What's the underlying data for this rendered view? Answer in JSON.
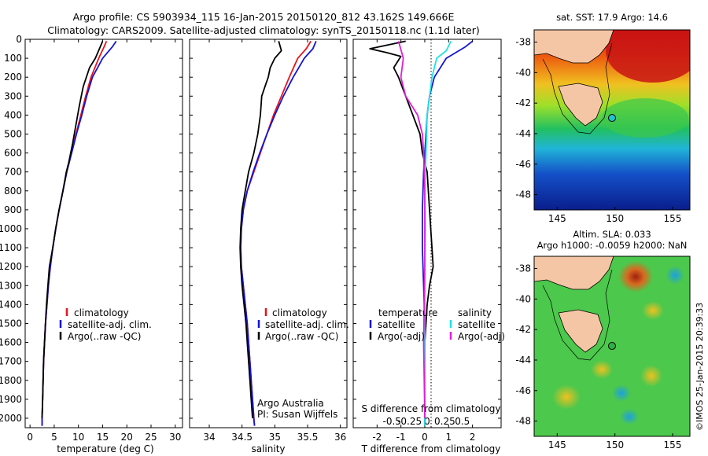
{
  "header": {
    "line1": "Argo profile: CS 5903934_115 16-Jan-2015 20150120_812 43.162S 149.666E",
    "line2": "Climatology: CARS2009. Satellite-adjusted climatology: synTS_20150118.nc (1.1d later)"
  },
  "side_label": "©IMOS 25-Jan-2015 20:39:33",
  "colors": {
    "climatology": "#e8141c",
    "satellite": "#1414d8",
    "argo": "#000000",
    "sal_satellite": "#1fe3e3",
    "sal_argo": "#e01fd8",
    "land": "#f5c6a5"
  },
  "chart_data": [
    {
      "id": "temperature",
      "type": "line",
      "xlabel": "temperature (deg C)",
      "ylim": [
        2050,
        0
      ],
      "xlim": [
        -1,
        31.5
      ],
      "xticks": [
        0,
        5,
        10,
        15,
        20,
        25,
        30
      ],
      "yticks": [
        0,
        100,
        200,
        300,
        400,
        500,
        600,
        700,
        800,
        900,
        1000,
        1100,
        1200,
        1300,
        1400,
        1500,
        1600,
        1700,
        1800,
        1900,
        2000
      ],
      "legend": [
        "climatology",
        "satellite-adj. clim.",
        "Argo(..raw -QC)"
      ],
      "series": [
        {
          "name": "climatology",
          "color": "#e8141c",
          "points": [
            [
              15.8,
              10
            ],
            [
              15.3,
              40
            ],
            [
              14.2,
              100
            ],
            [
              12.6,
              200
            ],
            [
              11.5,
              300
            ],
            [
              10.5,
              400
            ],
            [
              9.5,
              500
            ],
            [
              8.5,
              600
            ],
            [
              7.6,
              700
            ],
            [
              6.8,
              800
            ],
            [
              6.0,
              900
            ],
            [
              5.3,
              1000
            ],
            [
              4.7,
              1100
            ],
            [
              4.2,
              1200
            ],
            [
              3.8,
              1300
            ],
            [
              3.5,
              1400
            ],
            [
              3.2,
              1500
            ],
            [
              3.0,
              1600
            ],
            [
              2.8,
              1700
            ],
            [
              2.7,
              1800
            ],
            [
              2.6,
              1900
            ],
            [
              2.5,
              2000
            ],
            [
              2.5,
              2040
            ]
          ]
        },
        {
          "name": "satellite-adj. clim.",
          "color": "#1414d8",
          "points": [
            [
              17.8,
              10
            ],
            [
              17.0,
              40
            ],
            [
              15.0,
              100
            ],
            [
              12.9,
              200
            ],
            [
              11.7,
              300
            ],
            [
              10.7,
              400
            ],
            [
              9.6,
              500
            ],
            [
              8.6,
              600
            ],
            [
              7.6,
              700
            ],
            [
              6.8,
              800
            ],
            [
              6.0,
              900
            ],
            [
              5.3,
              1000
            ],
            [
              4.7,
              1100
            ],
            [
              4.2,
              1200
            ],
            [
              3.8,
              1300
            ],
            [
              3.5,
              1400
            ],
            [
              3.2,
              1500
            ],
            [
              3.0,
              1600
            ],
            [
              2.8,
              1700
            ],
            [
              2.7,
              1800
            ],
            [
              2.6,
              1900
            ],
            [
              2.5,
              2000
            ],
            [
              2.5,
              2040
            ]
          ]
        },
        {
          "name": "Argo(..raw -QC)",
          "color": "#000000",
          "points": [
            [
              15.0,
              10
            ],
            [
              14.5,
              40
            ],
            [
              13.5,
              100
            ],
            [
              12.3,
              150
            ],
            [
              11.0,
              250
            ],
            [
              10.2,
              350
            ],
            [
              9.5,
              450
            ],
            [
              8.8,
              550
            ],
            [
              8.0,
              650
            ],
            [
              7.5,
              700
            ],
            [
              6.8,
              800
            ],
            [
              6.0,
              900
            ],
            [
              5.3,
              1000
            ],
            [
              4.7,
              1100
            ],
            [
              4.0,
              1200
            ],
            [
              3.7,
              1300
            ],
            [
              3.4,
              1400
            ],
            [
              3.2,
              1500
            ],
            [
              3.0,
              1600
            ],
            [
              2.8,
              1700
            ],
            [
              2.7,
              1800
            ],
            [
              2.6,
              1900
            ],
            [
              2.5,
              2000
            ]
          ]
        }
      ]
    },
    {
      "id": "salinity",
      "type": "line",
      "xlabel": "salinity",
      "ylim": [
        2050,
        0
      ],
      "xlim": [
        33.7,
        36.1
      ],
      "xticks": [
        34,
        34.5,
        35,
        35.5,
        36
      ],
      "legend": [
        "climatology",
        "satellite-adj. clim.",
        "Argo(..raw -QC)"
      ],
      "annotation": [
        "Argo Australia",
        "PI: Susan Wijffels"
      ],
      "series": [
        {
          "name": "climatology",
          "color": "#e8141c",
          "points": [
            [
              35.55,
              10
            ],
            [
              35.48,
              50
            ],
            [
              35.35,
              100
            ],
            [
              35.22,
              200
            ],
            [
              35.1,
              300
            ],
            [
              34.98,
              400
            ],
            [
              34.88,
              500
            ],
            [
              34.78,
              600
            ],
            [
              34.68,
              700
            ],
            [
              34.58,
              800
            ],
            [
              34.52,
              900
            ],
            [
              34.49,
              1000
            ],
            [
              34.48,
              1100
            ],
            [
              34.49,
              1200
            ],
            [
              34.52,
              1300
            ],
            [
              34.55,
              1400
            ],
            [
              34.58,
              1500
            ],
            [
              34.6,
              1600
            ],
            [
              34.62,
              1700
            ],
            [
              34.64,
              1800
            ],
            [
              34.66,
              1900
            ],
            [
              34.68,
              2000
            ],
            [
              34.69,
              2040
            ]
          ]
        },
        {
          "name": "satellite-adj. clim.",
          "color": "#1414d8",
          "points": [
            [
              35.63,
              10
            ],
            [
              35.58,
              50
            ],
            [
              35.45,
              100
            ],
            [
              35.28,
              200
            ],
            [
              35.13,
              300
            ],
            [
              35.0,
              400
            ],
            [
              34.88,
              500
            ],
            [
              34.77,
              600
            ],
            [
              34.67,
              700
            ],
            [
              34.58,
              800
            ],
            [
              34.52,
              900
            ],
            [
              34.49,
              1000
            ],
            [
              34.48,
              1100
            ],
            [
              34.49,
              1200
            ],
            [
              34.52,
              1300
            ],
            [
              34.55,
              1400
            ],
            [
              34.58,
              1500
            ],
            [
              34.6,
              1600
            ],
            [
              34.62,
              1700
            ],
            [
              34.64,
              1800
            ],
            [
              34.66,
              1900
            ],
            [
              34.68,
              2000
            ],
            [
              34.69,
              2040
            ]
          ]
        },
        {
          "name": "Argo(..raw -QC)",
          "color": "#000000",
          "points": [
            [
              35.06,
              10
            ],
            [
              35.1,
              60
            ],
            [
              35.0,
              100
            ],
            [
              34.93,
              150
            ],
            [
              34.9,
              200
            ],
            [
              34.85,
              250
            ],
            [
              34.8,
              300
            ],
            [
              34.78,
              400
            ],
            [
              34.74,
              500
            ],
            [
              34.68,
              600
            ],
            [
              34.6,
              700
            ],
            [
              34.55,
              800
            ],
            [
              34.5,
              900
            ],
            [
              34.48,
              1000
            ],
            [
              34.47,
              1100
            ],
            [
              34.48,
              1200
            ],
            [
              34.5,
              1300
            ],
            [
              34.53,
              1400
            ],
            [
              34.56,
              1500
            ],
            [
              34.58,
              1600
            ],
            [
              34.6,
              1700
            ],
            [
              34.62,
              1800
            ],
            [
              34.64,
              1900
            ],
            [
              34.66,
              2000
            ]
          ]
        }
      ]
    },
    {
      "id": "difference",
      "type": "line",
      "xlabel": "T difference from climatology",
      "x2label": "S difference from climatology",
      "ylim": [
        2050,
        0
      ],
      "xlim": [
        -3.0,
        3.2
      ],
      "xticks": [
        -2,
        -1,
        0,
        1,
        2
      ],
      "x2ticks": [
        -0.5,
        -0.25,
        0,
        0.25,
        0.5
      ],
      "legend_left_title": "temperature",
      "legend_right_title": "salinity",
      "legend": [
        "satellite",
        "Argo(-adj)",
        "satellite",
        "Argo(-adj)"
      ],
      "series": [
        {
          "name": "temperature satellite",
          "color": "#1414d8",
          "points": [
            [
              2.0,
              10
            ],
            [
              1.7,
              40
            ],
            [
              0.9,
              100
            ],
            [
              0.4,
              200
            ],
            [
              0.2,
              300
            ],
            [
              0.1,
              400
            ],
            [
              0.05,
              500
            ],
            [
              0.0,
              600
            ],
            [
              -0.05,
              700
            ],
            [
              -0.1,
              900
            ],
            [
              -0.1,
              1100
            ],
            [
              -0.05,
              1300
            ],
            [
              0,
              1500
            ],
            [
              0,
              1800
            ],
            [
              0,
              2040
            ]
          ]
        },
        {
          "name": "temperature Argo(-adj)",
          "color": "#000000",
          "points": [
            [
              -0.8,
              10
            ],
            [
              -2.3,
              50
            ],
            [
              -1.6,
              70
            ],
            [
              -1.0,
              90
            ],
            [
              -1.3,
              150
            ],
            [
              -1.1,
              200
            ],
            [
              -0.8,
              300
            ],
            [
              -0.5,
              400
            ],
            [
              -0.2,
              500
            ],
            [
              -0.1,
              600
            ],
            [
              0.1,
              700
            ],
            [
              0.2,
              900
            ],
            [
              0.3,
              1100
            ],
            [
              0.35,
              1200
            ],
            [
              0.2,
              1300
            ],
            [
              0.1,
              1400
            ],
            [
              0.0,
              1600
            ],
            [
              0,
              2000
            ]
          ]
        },
        {
          "name": "salinity satellite",
          "color": "#1fe3e3",
          "points": [
            [
              1.1,
              10
            ],
            [
              0.9,
              60
            ],
            [
              0.5,
              100
            ],
            [
              0.3,
              200
            ],
            [
              0.1,
              400
            ],
            [
              0.05,
              600
            ],
            [
              0.0,
              800
            ],
            [
              0.02,
              1000
            ],
            [
              0,
              1200
            ],
            [
              0,
              1600
            ],
            [
              0,
              2040
            ]
          ]
        },
        {
          "name": "salinity Argo(-adj)",
          "color": "#e01fd8",
          "points": [
            [
              -1.1,
              10
            ],
            [
              -0.9,
              100
            ],
            [
              -1.0,
              200
            ],
            [
              -0.8,
              300
            ],
            [
              -0.3,
              400
            ],
            [
              -0.1,
              500
            ],
            [
              -0.05,
              600
            ],
            [
              0.0,
              800
            ],
            [
              0.0,
              1200
            ],
            [
              -0.05,
              1600
            ],
            [
              0,
              2000
            ]
          ]
        }
      ]
    },
    {
      "id": "sst-map",
      "type": "heatmap",
      "title": "sat. SST: 17.9  Argo: 14.6",
      "xlim": [
        143,
        156.5
      ],
      "ylim": [
        -49,
        -37.2
      ],
      "xticks": [
        145,
        150,
        155
      ],
      "yticks": [
        -38,
        -40,
        -42,
        -44,
        -46,
        -48
      ],
      "marker": {
        "lon": 149.666,
        "lat": -43.162
      }
    },
    {
      "id": "sla-map",
      "type": "heatmap",
      "title": "Altim. SLA: 0.033",
      "subtitle": "Argo h1000: -0.0059  h2000: NaN",
      "xlim": [
        143,
        156.5
      ],
      "ylim": [
        -49,
        -37.2
      ],
      "xticks": [
        145,
        150,
        155
      ],
      "yticks": [
        -38,
        -40,
        -42,
        -44,
        -46,
        -48
      ],
      "marker": {
        "lon": 149.666,
        "lat": -43.162
      }
    }
  ]
}
